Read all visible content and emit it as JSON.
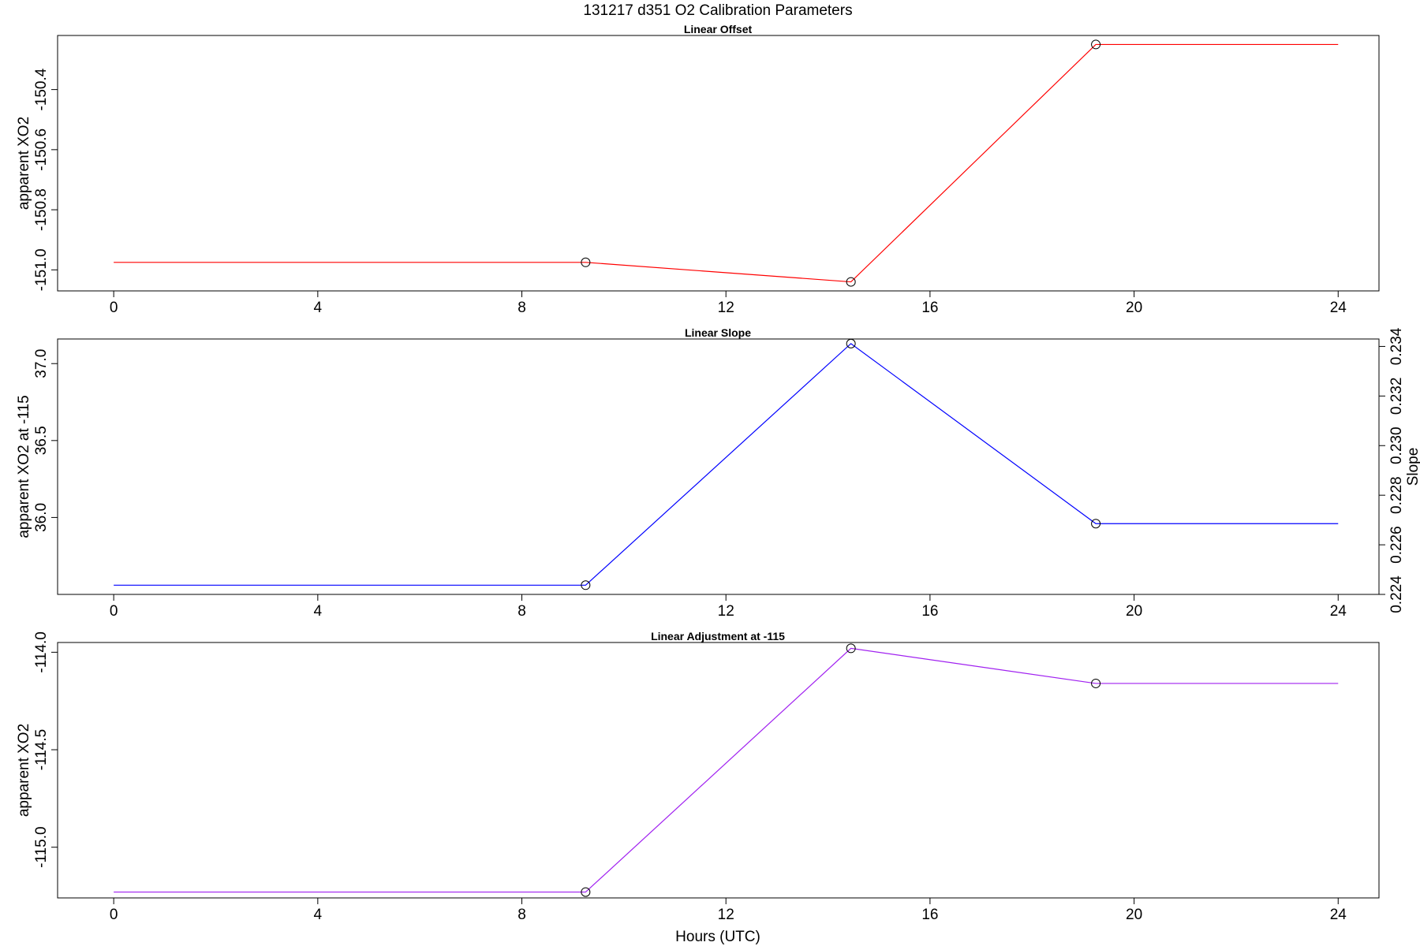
{
  "figure": {
    "title": "131217   d351   O2 Calibration Parameters",
    "xlabel": "Hours (UTC)"
  },
  "chart_data": [
    {
      "type": "line",
      "title": "Linear Offset",
      "xlabel": "",
      "ylabel": "apparent XO2",
      "xlim": [
        -1.1,
        24.8
      ],
      "ylim": [
        -151.07,
        -150.22
      ],
      "x_ticks": [
        0,
        4,
        8,
        12,
        16,
        20,
        24
      ],
      "y_ticks": [
        -151.0,
        -150.8,
        -150.6,
        -150.4
      ],
      "y_tick_labels": [
        "-151.0",
        "-150.8",
        "-150.6",
        "-150.4"
      ],
      "grid": false,
      "legend": "none",
      "series": [
        {
          "color": "#ff0000",
          "x": [
            0,
            9.25,
            14.45,
            19.25,
            24
          ],
          "y": [
            -150.975,
            -150.975,
            -151.04,
            -150.25,
            -150.25
          ],
          "markers": [
            false,
            true,
            true,
            true,
            false
          ]
        }
      ]
    },
    {
      "type": "line",
      "title": "Linear Slope",
      "xlabel": "",
      "ylabel": "apparent XO2 at -115",
      "ylabel_right": "Slope",
      "xlim": [
        -1.1,
        24.8
      ],
      "ylim": [
        35.5,
        37.16
      ],
      "ylim_right": [
        0.224,
        0.2343
      ],
      "x_ticks": [
        0,
        4,
        8,
        12,
        16,
        20,
        24
      ],
      "y_ticks": [
        36.0,
        36.5,
        37.0
      ],
      "y_tick_labels": [
        "36.0",
        "36.5",
        "37.0"
      ],
      "y_ticks_right": [
        0.224,
        0.226,
        0.228,
        0.23,
        0.232,
        0.234
      ],
      "y_tick_labels_right": [
        "0.224",
        "0.226",
        "0.228",
        "0.230",
        "0.232",
        "0.234"
      ],
      "grid": false,
      "legend": "none",
      "series": [
        {
          "color": "#0000ff",
          "x": [
            0,
            9.25,
            14.45,
            19.25,
            24
          ],
          "y": [
            35.56,
            35.56,
            37.13,
            35.96,
            35.96
          ],
          "markers": [
            false,
            true,
            true,
            true,
            false
          ]
        }
      ]
    },
    {
      "type": "line",
      "title": "Linear Adjustment at -115",
      "xlabel": "Hours (UTC)",
      "ylabel": "apparent XO2",
      "xlim": [
        -1.1,
        24.8
      ],
      "ylim": [
        -115.26,
        -113.95
      ],
      "x_ticks": [
        0,
        4,
        8,
        12,
        16,
        20,
        24
      ],
      "y_ticks": [
        -115.0,
        -114.5,
        -114.0
      ],
      "y_tick_labels": [
        "-115.0",
        "-114.5",
        "-114.0"
      ],
      "grid": false,
      "legend": "none",
      "series": [
        {
          "color": "#a020f0",
          "x": [
            0,
            9.25,
            14.45,
            19.25,
            24
          ],
          "y": [
            -115.23,
            -115.23,
            -113.98,
            -114.16,
            -114.16
          ],
          "markers": [
            false,
            true,
            true,
            true,
            false
          ]
        }
      ]
    }
  ]
}
